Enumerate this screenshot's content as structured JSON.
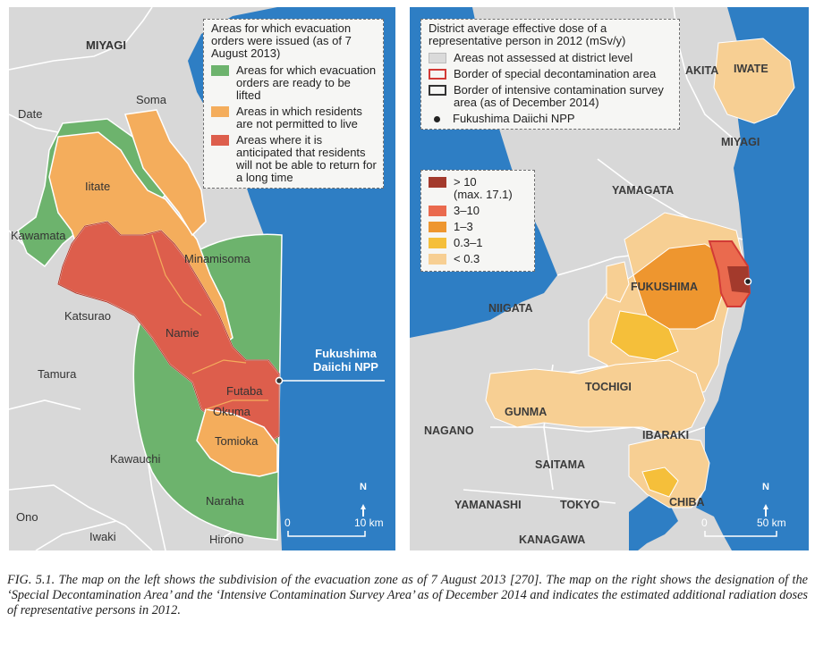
{
  "left_map": {
    "legend": {
      "title": "Areas for which evacuation orders were issued (as of 7 August 2013)",
      "items": [
        {
          "label": "Areas for which evacuation orders are ready to be lifted",
          "color": "#6db36d"
        },
        {
          "label": "Areas in which residents are not permitted to live",
          "color": "#f4ad5c"
        },
        {
          "label": "Areas where it is anticipated that residents will not be able to return for a long time",
          "color": "#dd5e4c"
        }
      ]
    },
    "place_labels": {
      "miyagi": "MIYAGI",
      "soma": "Soma",
      "date": "Date",
      "iitate": "Iitate",
      "kawamata": "Kawamata",
      "minamisoma": "Minamisoma",
      "katsurao": "Katsurao",
      "namie": "Namie",
      "tamura": "Tamura",
      "futaba": "Futaba",
      "okuma": "Okuma",
      "tomioka": "Tomioka",
      "kawauchi": "Kawauchi",
      "naraha": "Naraha",
      "ono": "Ono",
      "iwaki": "Iwaki",
      "hirono": "Hirono"
    },
    "npp_label_line1": "Fukushima",
    "npp_label_line2": "Daiichi NPP",
    "scale": {
      "zero": "0",
      "end": "10 km"
    },
    "north": "N"
  },
  "right_map": {
    "legend": {
      "title": "District average effective dose of a representative person in 2012 (mSv/y)",
      "items": [
        {
          "label": "Areas not assessed at district level",
          "type": "fill",
          "color": "#dadada"
        },
        {
          "label": "Border of special decontamination area",
          "type": "border",
          "color": "#d23a36"
        },
        {
          "label": "Border of intensive contamination survey area (as of December 2014)",
          "type": "border",
          "color": "#333333"
        },
        {
          "label": "Fukushima Daiichi NPP",
          "type": "dot",
          "color": "#222222"
        }
      ]
    },
    "dose_legend": [
      {
        "label": "> 10",
        "sub": "(max. 17.1)",
        "color": "#a33a2c"
      },
      {
        "label": "3–10",
        "color": "#ea6a4e"
      },
      {
        "label": "1–3",
        "color": "#ee962f"
      },
      {
        "label": "0.3–1",
        "color": "#f5bf3a"
      },
      {
        "label": "< 0.3",
        "color": "#f7cf93"
      }
    ],
    "region_labels": {
      "akita": "AKITA",
      "iwate": "IWATE",
      "miyagi": "MIYAGI",
      "yamagata": "YAMAGATA",
      "fukushima": "FUKUSHIMA",
      "niigata": "NIIGATA",
      "tochigi": "TOCHIGI",
      "gunma": "GUNMA",
      "nagano": "NAGANO",
      "ibaraki": "IBARAKI",
      "saitama": "SAITAMA",
      "yamanashi": "YAMANASHI",
      "tokyo": "TOKYO",
      "chiba": "CHIBA",
      "kanagawa": "KANAGAWA"
    },
    "scale": {
      "zero": "0",
      "end": "50 km"
    },
    "north": "N"
  },
  "colors": {
    "sea": "#2e7ec4",
    "land": "#d8d8d8",
    "border": "#ffffff",
    "green": "#6db36d",
    "orange": "#f4ad5c",
    "red": "#dd5e4c"
  },
  "caption": "FIG. 5.1. The map on the left shows the subdivision of the evacuation zone as of 7 August 2013 [270]. The map on the right shows the designation of the ‘Special Decontamination Area’ and the ‘Intensive Contamination Survey Area’ as of December 2014 and indicates the estimated additional radiation doses of representative persons in 2012."
}
